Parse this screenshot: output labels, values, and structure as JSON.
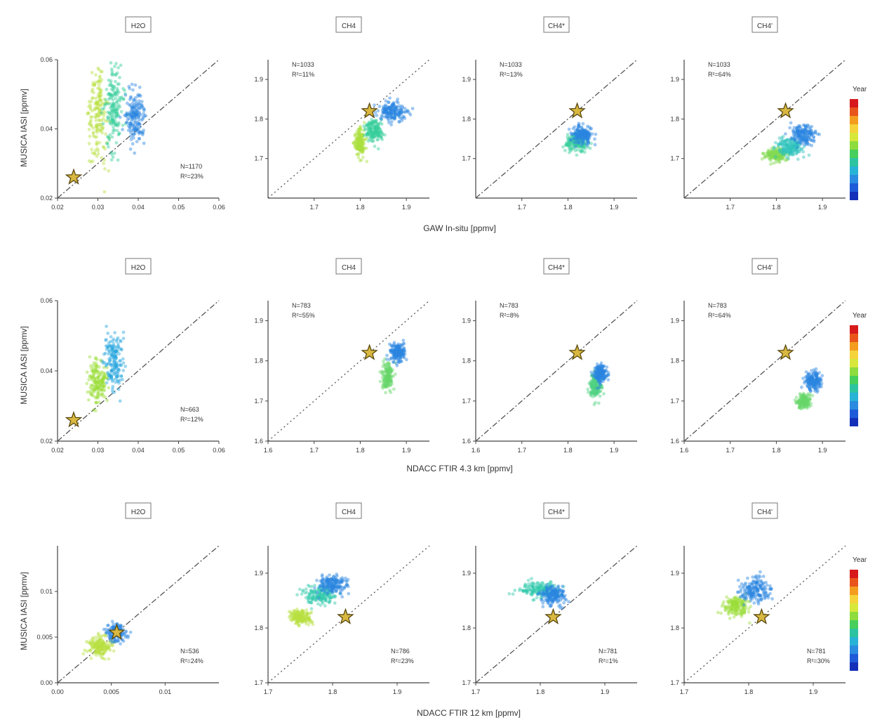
{
  "figure": {
    "row_xlabels": [
      "GAW In-situ [ppmv]",
      "NDACC FTIR 4.3 km [ppmv]",
      "NDACC FTIR 12 km [ppmv]"
    ],
    "ylabel": "MUSICA IASI [ppmv]",
    "legend_title": "Year",
    "colorbar_colors": [
      "#d7191c",
      "#e8541a",
      "#f39c1e",
      "#f5d33b",
      "#d8e83a",
      "#8fdc3e",
      "#46cf5c",
      "#2cc4a0",
      "#26b3d6",
      "#2b8be0",
      "#1f5bd8",
      "#1530b8"
    ]
  },
  "chart_data": [
    {
      "type": "scatter",
      "title": "H2O",
      "xlim": [
        0.02,
        0.06
      ],
      "ylim": [
        0.02,
        0.06
      ],
      "xticks": [
        "0.02",
        "0.03",
        "0.04",
        "0.05",
        "0.06"
      ],
      "yticks": [
        "0.02",
        "0.04",
        "0.06"
      ],
      "stats": [
        "N=1170",
        "R²=23%"
      ],
      "stats_pos": "bottom-right",
      "reference": [
        0.024,
        0.026
      ],
      "diag_style": "dash-dot",
      "clouds": [
        {
          "cx": 0.03,
          "cy": 0.043,
          "sx": 0.002,
          "sy": 0.01,
          "year": 0.2
        },
        {
          "cx": 0.034,
          "cy": 0.046,
          "sx": 0.002,
          "sy": 0.01,
          "year": 0.5
        },
        {
          "cx": 0.039,
          "cy": 0.044,
          "sx": 0.002,
          "sy": 0.007,
          "year": 0.85
        }
      ]
    },
    {
      "type": "scatter",
      "title": "CH4",
      "xlim": [
        1.6,
        1.95
      ],
      "ylim": [
        1.6,
        1.95
      ],
      "xticks": [
        "1.7",
        "1.8",
        "1.9"
      ],
      "yticks": [
        "1.7",
        "1.8",
        "1.9"
      ],
      "stats": [
        "N=1033",
        "R²=11%"
      ],
      "stats_pos": "top-left",
      "reference": [
        1.82,
        1.82
      ],
      "diag_style": "dotted",
      "clouds": [
        {
          "cx": 1.8,
          "cy": 1.74,
          "sx": 0.01,
          "sy": 0.03,
          "year": 0.25
        },
        {
          "cx": 1.83,
          "cy": 1.77,
          "sx": 0.015,
          "sy": 0.025,
          "year": 0.5
        },
        {
          "cx": 1.87,
          "cy": 1.82,
          "sx": 0.025,
          "sy": 0.02,
          "year": 0.85
        }
      ]
    },
    {
      "type": "scatter",
      "title": "CH4*",
      "xlim": [
        1.6,
        1.95
      ],
      "ylim": [
        1.6,
        1.95
      ],
      "xticks": [
        "1.7",
        "1.8",
        "1.9"
      ],
      "yticks": [
        "1.7",
        "1.8",
        "1.9"
      ],
      "stats": [
        "N=1033",
        "R²=13%"
      ],
      "stats_pos": "top-left",
      "reference": [
        1.82,
        1.82
      ],
      "diag_style": "dash-dot",
      "clouds": [
        {
          "cx": 1.82,
          "cy": 1.74,
          "sx": 0.02,
          "sy": 0.02,
          "year": 0.5
        },
        {
          "cx": 1.83,
          "cy": 1.76,
          "sx": 0.018,
          "sy": 0.018,
          "year": 0.85
        }
      ]
    },
    {
      "type": "scatter",
      "title": "CH4'",
      "xlim": [
        1.6,
        1.95
      ],
      "ylim": [
        1.6,
        1.95
      ],
      "xticks": [
        "1.7",
        "1.8",
        "1.9"
      ],
      "yticks": [
        "1.7",
        "1.8",
        "1.9"
      ],
      "stats": [
        "N=1033",
        "R²=64%"
      ],
      "stats_pos": "top-left",
      "reference": [
        1.82,
        1.82
      ],
      "diag_style": "dash-dot",
      "clouds": [
        {
          "cx": 1.8,
          "cy": 1.71,
          "sx": 0.02,
          "sy": 0.015,
          "year": 0.35
        },
        {
          "cx": 1.83,
          "cy": 1.73,
          "sx": 0.025,
          "sy": 0.02,
          "year": 0.6
        },
        {
          "cx": 1.86,
          "cy": 1.76,
          "sx": 0.025,
          "sy": 0.02,
          "year": 0.85
        }
      ]
    },
    {
      "type": "scatter",
      "title": "H2O",
      "xlim": [
        0.02,
        0.06
      ],
      "ylim": [
        0.02,
        0.06
      ],
      "xticks": [
        "0.02",
        "0.03",
        "0.04",
        "0.05",
        "0.06"
      ],
      "yticks": [
        "0.02",
        "0.04",
        "0.06"
      ],
      "stats": [
        "N=663",
        "R²=12%"
      ],
      "stats_pos": "bottom-right",
      "reference": [
        0.024,
        0.026
      ],
      "diag_style": "dash-dot",
      "clouds": [
        {
          "cx": 0.03,
          "cy": 0.037,
          "sx": 0.002,
          "sy": 0.005,
          "year": 0.3
        },
        {
          "cx": 0.034,
          "cy": 0.043,
          "sx": 0.002,
          "sy": 0.007,
          "year": 0.75
        }
      ]
    },
    {
      "type": "scatter",
      "title": "CH4",
      "xlim": [
        1.6,
        1.95
      ],
      "ylim": [
        1.6,
        1.95
      ],
      "xticks": [
        "1.6",
        "1.7",
        "1.8",
        "1.9"
      ],
      "yticks": [
        "1.6",
        "1.7",
        "1.8",
        "1.9"
      ],
      "stats": [
        "N=783",
        "R²=55%"
      ],
      "stats_pos": "top-left",
      "reference": [
        1.82,
        1.82
      ],
      "diag_style": "dotted",
      "clouds": [
        {
          "cx": 1.86,
          "cy": 1.76,
          "sx": 0.01,
          "sy": 0.03,
          "year": 0.4
        },
        {
          "cx": 1.88,
          "cy": 1.82,
          "sx": 0.015,
          "sy": 0.02,
          "year": 0.85
        }
      ]
    },
    {
      "type": "scatter",
      "title": "CH4*",
      "xlim": [
        1.6,
        1.95
      ],
      "ylim": [
        1.6,
        1.95
      ],
      "xticks": [
        "1.6",
        "1.7",
        "1.8",
        "1.9"
      ],
      "yticks": [
        "1.6",
        "1.7",
        "1.8",
        "1.9"
      ],
      "stats": [
        "N=783",
        "R²=8%"
      ],
      "stats_pos": "top-left",
      "reference": [
        1.82,
        1.82
      ],
      "diag_style": "dash-dot",
      "clouds": [
        {
          "cx": 1.86,
          "cy": 1.74,
          "sx": 0.01,
          "sy": 0.025,
          "year": 0.45
        },
        {
          "cx": 1.87,
          "cy": 1.77,
          "sx": 0.012,
          "sy": 0.02,
          "year": 0.85
        }
      ]
    },
    {
      "type": "scatter",
      "title": "CH4'",
      "xlim": [
        1.6,
        1.95
      ],
      "ylim": [
        1.6,
        1.95
      ],
      "xticks": [
        "1.6",
        "1.7",
        "1.8",
        "1.9"
      ],
      "yticks": [
        "1.6",
        "1.7",
        "1.8",
        "1.9"
      ],
      "stats": [
        "N=783",
        "R²=64%"
      ],
      "stats_pos": "top-left",
      "reference": [
        1.82,
        1.82
      ],
      "diag_style": "dash-dot",
      "clouds": [
        {
          "cx": 1.86,
          "cy": 1.7,
          "sx": 0.012,
          "sy": 0.015,
          "year": 0.4
        },
        {
          "cx": 1.88,
          "cy": 1.75,
          "sx": 0.015,
          "sy": 0.02,
          "year": 0.85
        }
      ]
    },
    {
      "type": "scatter",
      "title": "H2O",
      "xlim": [
        0.0,
        0.015
      ],
      "ylim": [
        0.0,
        0.015
      ],
      "xticks": [
        "0.00",
        "0.005",
        "0.01"
      ],
      "yticks": [
        "0.00",
        "0.005",
        "0.01"
      ],
      "stats": [
        "N=536",
        "R²=24%"
      ],
      "stats_pos": "bottom-right",
      "reference": [
        0.0055,
        0.0055
      ],
      "diag_style": "dash-dot",
      "clouds": [
        {
          "cx": 0.004,
          "cy": 0.004,
          "sx": 0.001,
          "sy": 0.0009,
          "year": 0.2
        },
        {
          "cx": 0.0055,
          "cy": 0.0055,
          "sx": 0.0008,
          "sy": 0.0008,
          "year": 0.85
        }
      ]
    },
    {
      "type": "scatter",
      "title": "CH4",
      "xlim": [
        1.7,
        1.95
      ],
      "ylim": [
        1.7,
        1.95
      ],
      "xticks": [
        "1.7",
        "1.8",
        "1.9"
      ],
      "yticks": [
        "1.7",
        "1.8",
        "1.9"
      ],
      "stats": [
        "N=786",
        "R²=23%"
      ],
      "stats_pos": "bottom-right",
      "reference": [
        1.82,
        1.82
      ],
      "diag_style": "dotted",
      "clouds": [
        {
          "cx": 1.75,
          "cy": 1.82,
          "sx": 0.015,
          "sy": 0.01,
          "year": 0.2
        },
        {
          "cx": 1.78,
          "cy": 1.86,
          "sx": 0.02,
          "sy": 0.015,
          "year": 0.55
        },
        {
          "cx": 1.8,
          "cy": 1.88,
          "sx": 0.02,
          "sy": 0.015,
          "year": 0.85
        }
      ]
    },
    {
      "type": "scatter",
      "title": "CH4*",
      "xlim": [
        1.7,
        1.95
      ],
      "ylim": [
        1.7,
        1.95
      ],
      "xticks": [
        "1.7",
        "1.8",
        "1.9"
      ],
      "yticks": [
        "1.7",
        "1.8",
        "1.9"
      ],
      "stats": [
        "N=781",
        "R²=1%"
      ],
      "stats_pos": "bottom-right",
      "reference": [
        1.82,
        1.82
      ],
      "diag_style": "dash-dot",
      "clouds": [
        {
          "cx": 1.8,
          "cy": 1.87,
          "sx": 0.025,
          "sy": 0.012,
          "year": 0.55
        },
        {
          "cx": 1.82,
          "cy": 1.86,
          "sx": 0.015,
          "sy": 0.015,
          "year": 0.85
        }
      ]
    },
    {
      "type": "scatter",
      "title": "CH4'",
      "xlim": [
        1.7,
        1.95
      ],
      "ylim": [
        1.7,
        1.95
      ],
      "xticks": [
        "1.7",
        "1.8",
        "1.9"
      ],
      "yticks": [
        "1.7",
        "1.8",
        "1.9"
      ],
      "stats": [
        "N=781",
        "R²=30%"
      ],
      "stats_pos": "bottom-right",
      "reference": [
        1.82,
        1.82
      ],
      "diag_style": "dotted",
      "clouds": [
        {
          "cx": 1.78,
          "cy": 1.84,
          "sx": 0.015,
          "sy": 0.015,
          "year": 0.3
        },
        {
          "cx": 1.81,
          "cy": 1.87,
          "sx": 0.02,
          "sy": 0.02,
          "year": 0.85
        }
      ]
    }
  ]
}
